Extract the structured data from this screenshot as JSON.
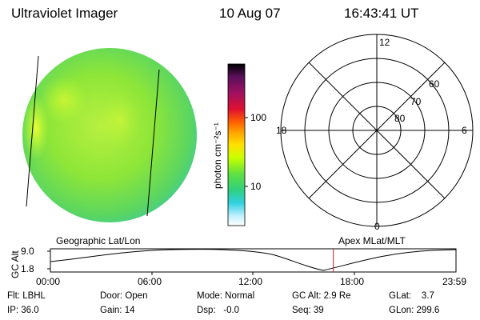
{
  "header": {
    "instrument": "Ultraviolet Imager",
    "date": "10 Aug 07",
    "time": "16:43:41 UT"
  },
  "colorbar": {
    "unit_label": "photon cm⁻²s⁻¹",
    "ticks": [
      "100",
      "10"
    ],
    "colors": [
      "#000000",
      "#5a0f5a",
      "#a01060",
      "#e01030",
      "#ff6000",
      "#ffa000",
      "#ffe000",
      "#c8ff00",
      "#60e040",
      "#30d080",
      "#30d0e0",
      "#c0f0ff",
      "#ffffff"
    ]
  },
  "polar_grid": {
    "mlt_labels": {
      "top": "12",
      "bottom": "0",
      "left": "18",
      "right": "6"
    },
    "lat_labels": [
      "60",
      "70",
      "80"
    ]
  },
  "timeline": {
    "left_label": "Geographic Lat/Lon",
    "right_label": "Apex MLat/MLT",
    "axis_title": "GC Alt",
    "y_ticks": [
      "9.0",
      "1.8"
    ],
    "x_ticks": [
      "00:00",
      "06:00",
      "12:00",
      "18:00",
      "23:59"
    ],
    "marker_time_hours": 16.73
  },
  "info": {
    "row1": [
      {
        "label": "Flt:",
        "value": "LBHL"
      },
      {
        "label": "Door:",
        "value": "Open"
      },
      {
        "label": "Mode:",
        "value": "Normal"
      },
      {
        "label": "GC Alt:",
        "value": "2.9 Re"
      },
      {
        "label": "GLat:",
        "value": "3.7"
      }
    ],
    "row2": [
      {
        "label": "IP:",
        "value": "36.0"
      },
      {
        "label": "Gain:",
        "value": "14"
      },
      {
        "label": "Dsp:",
        "value": "-0.0"
      },
      {
        "label": "Seq:",
        "value": "39"
      },
      {
        "label": "GLon:",
        "value": "299.6"
      }
    ]
  }
}
